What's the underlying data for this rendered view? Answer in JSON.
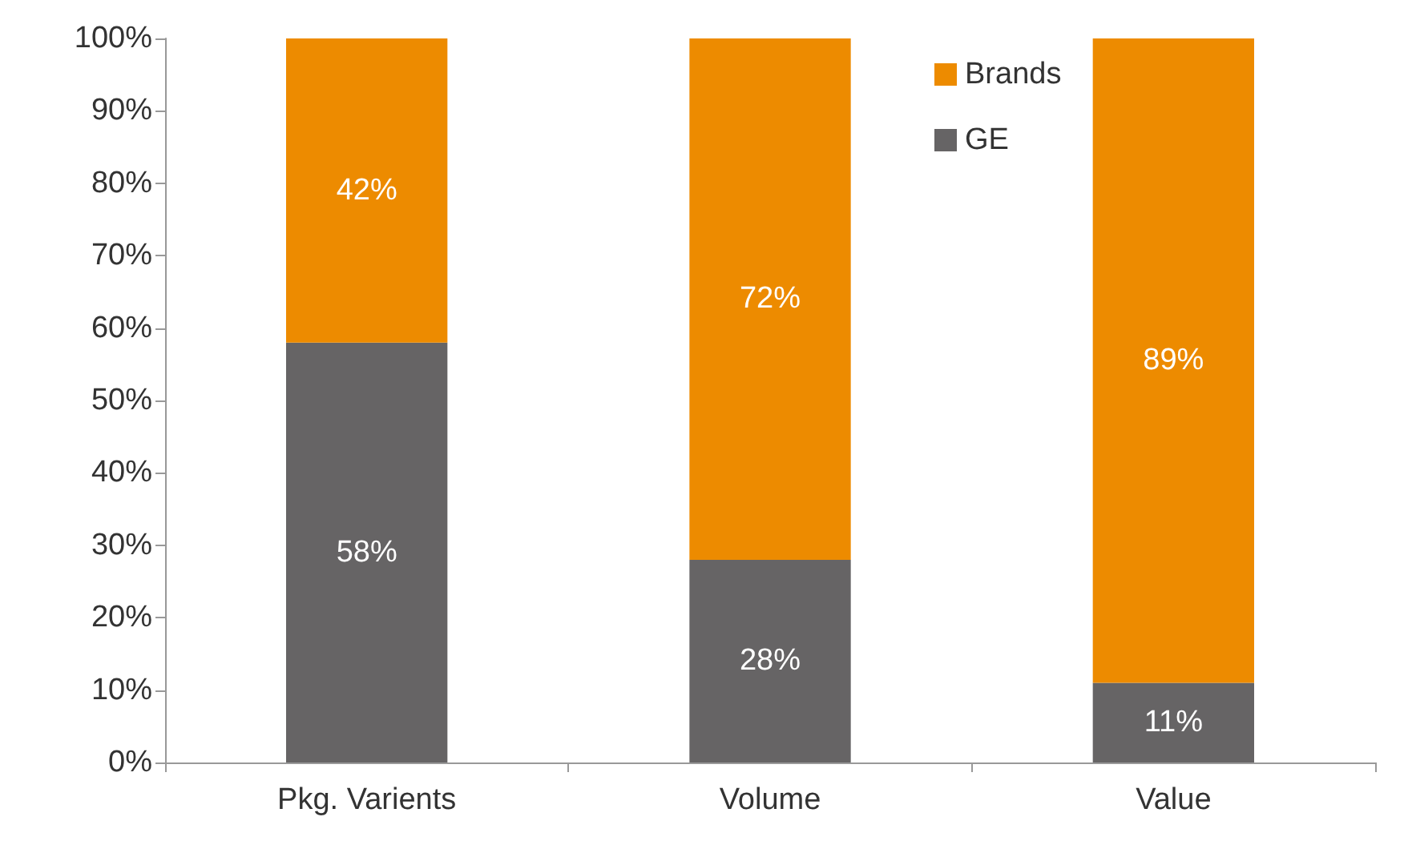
{
  "chart_data": {
    "type": "bar",
    "stacked": true,
    "categories": [
      "Pkg. Varients",
      "Volume",
      "Value"
    ],
    "series": [
      {
        "name": "GE",
        "color": "#666465",
        "values": [
          58,
          28,
          11
        ],
        "value_labels": [
          "58%",
          "28%",
          "11%"
        ]
      },
      {
        "name": "Brands",
        "color": "#ed8b00",
        "values": [
          42,
          72,
          89
        ],
        "value_labels": [
          "42%",
          "72%",
          "89%"
        ]
      }
    ],
    "ylim": [
      0,
      100
    ],
    "yticks": [
      {
        "value": 0,
        "label": "0%"
      },
      {
        "value": 10,
        "label": "10%"
      },
      {
        "value": 20,
        "label": "20%"
      },
      {
        "value": 30,
        "label": "30%"
      },
      {
        "value": 40,
        "label": "40%"
      },
      {
        "value": 50,
        "label": "50%"
      },
      {
        "value": 60,
        "label": "60%"
      },
      {
        "value": 70,
        "label": "70%"
      },
      {
        "value": 80,
        "label": "80%"
      },
      {
        "value": 90,
        "label": "90%"
      },
      {
        "value": 100,
        "label": "100%"
      }
    ],
    "grid": false,
    "legend": "top right"
  }
}
